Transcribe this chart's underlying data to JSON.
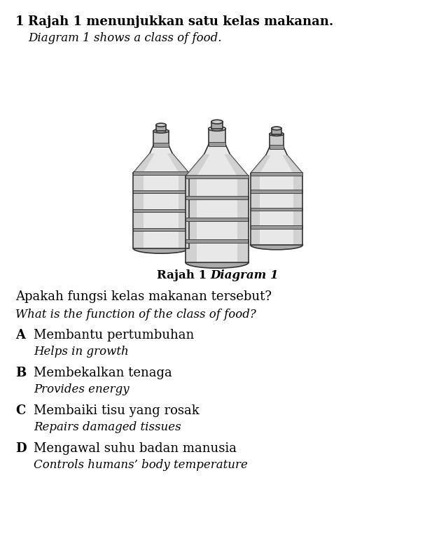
{
  "bg_color": "#ffffff",
  "question_number": "1",
  "line1_bold": "Rajah 1 menunjukkan satu kelas makanan.",
  "line2_italic": "Diagram 1 shows a class of food.",
  "caption_bold": "Rajah 1",
  "caption_italic": "Diagram 1",
  "question_malay": "Apakah fungsi kelas makanan tersebut?",
  "question_english": "What is the function of the class of food?",
  "options": [
    {
      "letter": "A",
      "malay": "Membantu pertumbuhan",
      "english": "Helps in growth"
    },
    {
      "letter": "B",
      "malay": "Membekalkan tenaga",
      "english": "Provides energy"
    },
    {
      "letter": "C",
      "malay": "Membaiki tisu yang rosak",
      "english": "Repairs damaged tissues"
    },
    {
      "letter": "D",
      "malay": "Mengawal suhu badan manusia",
      "english": "Controls humans’ body temperature"
    }
  ],
  "bottle_fill": "#e8e8e8",
  "bottle_edge": "#333333",
  "bottle_dark": "#aaaaaa",
  "bottle_mid": "#cccccc",
  "band_color": "#999999"
}
